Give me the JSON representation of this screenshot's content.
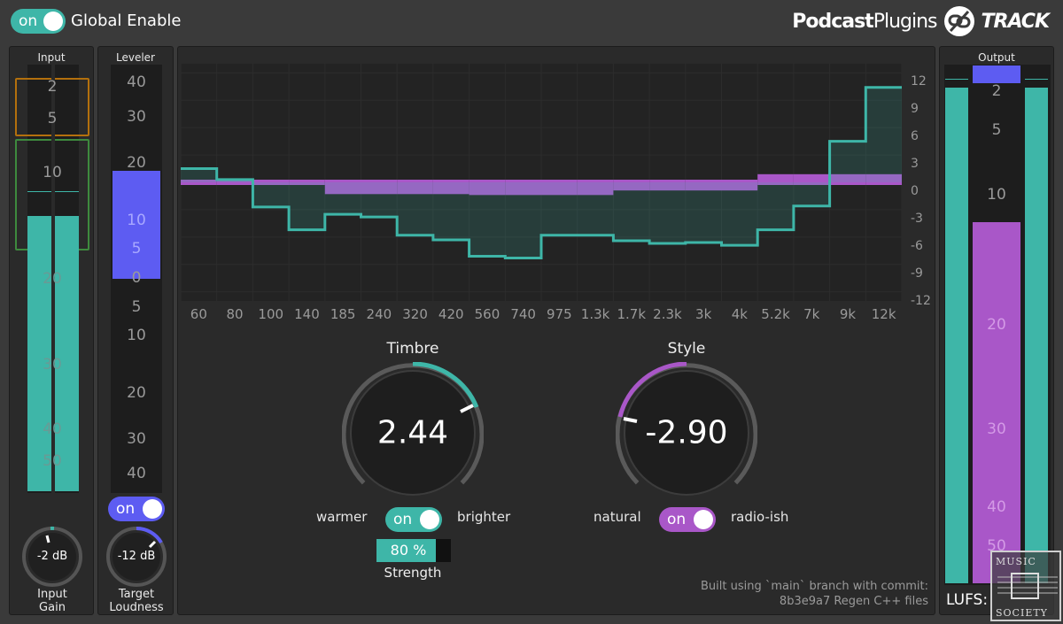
{
  "global": {
    "toggle_label": "on",
    "title": "Global Enable"
  },
  "brand": {
    "name_bold": "Podcast",
    "name_light": "Plugins",
    "product": "TRACK"
  },
  "colors": {
    "teal": "#3eb6a8",
    "purple": "#a957c8",
    "blue": "#5d5cf2",
    "panel": "#2a2a2a"
  },
  "input": {
    "title": "Input",
    "scale": [
      "2",
      "5",
      "10",
      "20",
      "30",
      "40",
      "50"
    ],
    "knob_value": "-2 dB",
    "knob_label_1": "Input",
    "knob_label_2": "Gain"
  },
  "leveler": {
    "title": "Leveler",
    "scale_top": [
      "40",
      "30",
      "20",
      "10",
      "5",
      "0"
    ],
    "scale_bottom": [
      "5",
      "10",
      "20",
      "30",
      "40"
    ],
    "toggle_label": "on",
    "knob_value": "-12 dB",
    "knob_label_1": "Target",
    "knob_label_2": "Loudness"
  },
  "eq": {
    "freqs": [
      "60",
      "80",
      "100",
      "140",
      "185",
      "240",
      "320",
      "420",
      "560",
      "740",
      "975",
      "1.3k",
      "1.7k",
      "2.3k",
      "3k",
      "4k",
      "5.2k",
      "7k",
      "9k",
      "12k"
    ],
    "db_ticks": [
      "12",
      "9",
      "6",
      "3",
      "0",
      "-3",
      "-6",
      "-9",
      "-12"
    ],
    "curve_db": [
      1.5,
      0.3,
      -2.7,
      -5.2,
      -3.5,
      -3.8,
      -5.8,
      -6.3,
      -8.1,
      -8.3,
      -5.8,
      -5.8,
      -6.4,
      -6.7,
      -6.6,
      -6.9,
      -5.2,
      -2.6,
      4.5,
      10.4
    ],
    "style_db": [
      0,
      0,
      0,
      0,
      -1,
      -1,
      -1,
      -1,
      -1.1,
      -1.1,
      -1.1,
      -1.1,
      -0.6,
      -0.6,
      -0.6,
      -0.6,
      0.6,
      0.6,
      0.6,
      0.6
    ]
  },
  "timbre": {
    "title": "Timbre",
    "value": "2.44",
    "left": "warmer",
    "right": "brighter",
    "toggle_label": "on",
    "strength_value": "80 %",
    "strength_fraction": 0.8,
    "strength_label": "Strength"
  },
  "style": {
    "title": "Style",
    "value": "-2.90",
    "left": "natural",
    "right": "radio-ish",
    "toggle_label": "on"
  },
  "output": {
    "title": "Output",
    "scale": [
      "2",
      "5",
      "10",
      "20",
      "30",
      "40",
      "50"
    ],
    "lufs_label": "LUFS:"
  },
  "build": {
    "line1": "Built using `main` branch with commit:",
    "line2": "8b3e9a7 Regen C++ files"
  },
  "watermark": {
    "line1": "MUSIC",
    "line2": "SOCIETY"
  }
}
